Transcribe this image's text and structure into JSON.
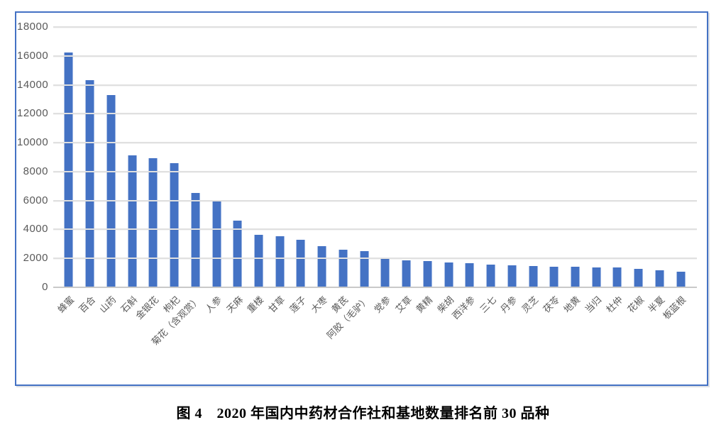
{
  "figure_caption": "图 4　2020 年国内中药材合作社和基地数量排名前 30 品种",
  "chart_data": {
    "type": "bar",
    "title": "",
    "xlabel": "",
    "ylabel": "",
    "grid": true,
    "legend": "none",
    "ylim": [
      0,
      18000
    ],
    "yticks": [
      18000,
      16000,
      14000,
      12000,
      10000,
      8000,
      6000,
      4000,
      2000,
      0
    ],
    "categories": [
      "蜂蜜",
      "百合",
      "山药",
      "石斛",
      "金银花",
      "枸杞",
      "菊花（含观赏）",
      "人参",
      "天麻",
      "重楼",
      "甘草",
      "莲子",
      "大枣",
      "黄芪",
      "阿胶（毛驴）",
      "党参",
      "艾草",
      "黄精",
      "柴胡",
      "西洋参",
      "三七",
      "丹参",
      "灵芝",
      "茯苓",
      "地黄",
      "当归",
      "杜仲",
      "花椒",
      "半夏",
      "板蓝根"
    ],
    "values": [
      16250,
      14300,
      13300,
      9100,
      8950,
      8600,
      6500,
      5950,
      4600,
      3650,
      3550,
      3300,
      2850,
      2600,
      2480,
      2000,
      1870,
      1800,
      1720,
      1660,
      1580,
      1500,
      1470,
      1430,
      1410,
      1380,
      1380,
      1270,
      1200,
      1100
    ]
  },
  "colors": {
    "bar": "#4472C4",
    "frame_border": "#4472C4",
    "gridline": "#E0E0E0",
    "axis_line": "#C9C9C9",
    "tick_label": "#595959"
  }
}
